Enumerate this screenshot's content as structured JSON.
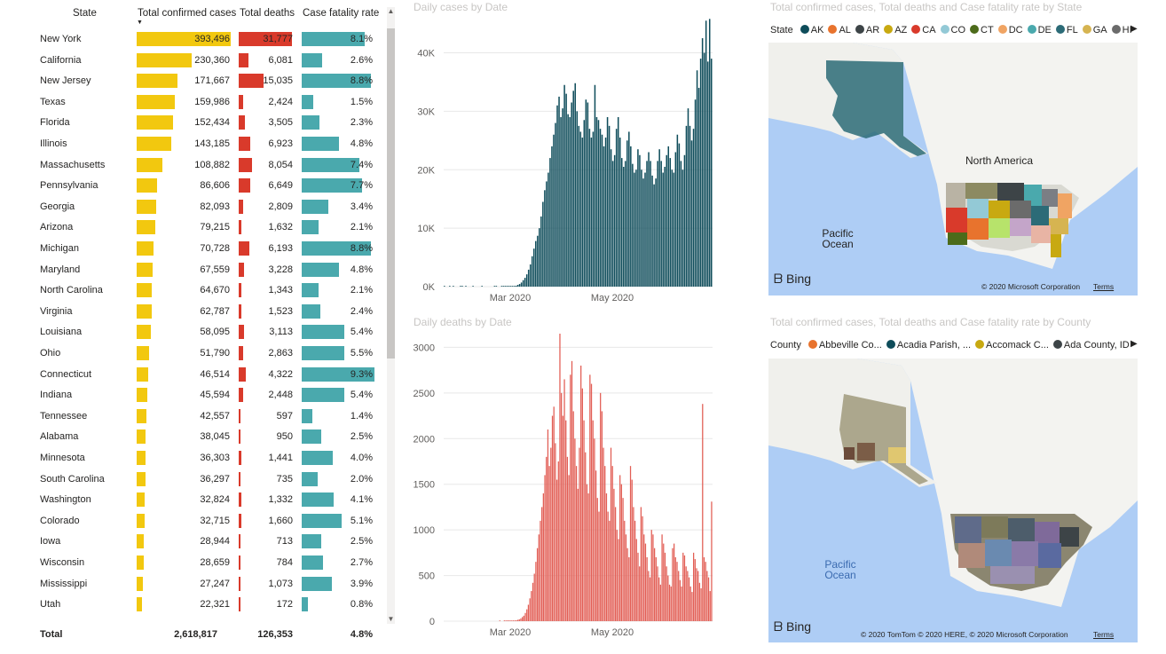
{
  "table": {
    "headers": {
      "state": "State",
      "cases": "Total confirmed cases",
      "deaths": "Total deaths",
      "cfr": "Case fatality rate"
    },
    "rows": [
      {
        "state": "New York",
        "cases": "393,496",
        "deaths": "31,777",
        "cfr": "8.1%",
        "cases_v": 393496,
        "deaths_v": 31777,
        "cfr_v": 8.1
      },
      {
        "state": "California",
        "cases": "230,360",
        "deaths": "6,081",
        "cfr": "2.6%",
        "cases_v": 230360,
        "deaths_v": 6081,
        "cfr_v": 2.6
      },
      {
        "state": "New Jersey",
        "cases": "171,667",
        "deaths": "15,035",
        "cfr": "8.8%",
        "cases_v": 171667,
        "deaths_v": 15035,
        "cfr_v": 8.8
      },
      {
        "state": "Texas",
        "cases": "159,986",
        "deaths": "2,424",
        "cfr": "1.5%",
        "cases_v": 159986,
        "deaths_v": 2424,
        "cfr_v": 1.5
      },
      {
        "state": "Florida",
        "cases": "152,434",
        "deaths": "3,505",
        "cfr": "2.3%",
        "cases_v": 152434,
        "deaths_v": 3505,
        "cfr_v": 2.3
      },
      {
        "state": "Illinois",
        "cases": "143,185",
        "deaths": "6,923",
        "cfr": "4.8%",
        "cases_v": 143185,
        "deaths_v": 6923,
        "cfr_v": 4.8
      },
      {
        "state": "Massachusetts",
        "cases": "108,882",
        "deaths": "8,054",
        "cfr": "7.4%",
        "cases_v": 108882,
        "deaths_v": 8054,
        "cfr_v": 7.4
      },
      {
        "state": "Pennsylvania",
        "cases": "86,606",
        "deaths": "6,649",
        "cfr": "7.7%",
        "cases_v": 86606,
        "deaths_v": 6649,
        "cfr_v": 7.7
      },
      {
        "state": "Georgia",
        "cases": "82,093",
        "deaths": "2,809",
        "cfr": "3.4%",
        "cases_v": 82093,
        "deaths_v": 2809,
        "cfr_v": 3.4
      },
      {
        "state": "Arizona",
        "cases": "79,215",
        "deaths": "1,632",
        "cfr": "2.1%",
        "cases_v": 79215,
        "deaths_v": 1632,
        "cfr_v": 2.1
      },
      {
        "state": "Michigan",
        "cases": "70,728",
        "deaths": "6,193",
        "cfr": "8.8%",
        "cases_v": 70728,
        "deaths_v": 6193,
        "cfr_v": 8.8
      },
      {
        "state": "Maryland",
        "cases": "67,559",
        "deaths": "3,228",
        "cfr": "4.8%",
        "cases_v": 67559,
        "deaths_v": 3228,
        "cfr_v": 4.8
      },
      {
        "state": "North Carolina",
        "cases": "64,670",
        "deaths": "1,343",
        "cfr": "2.1%",
        "cases_v": 64670,
        "deaths_v": 1343,
        "cfr_v": 2.1
      },
      {
        "state": "Virginia",
        "cases": "62,787",
        "deaths": "1,523",
        "cfr": "2.4%",
        "cases_v": 62787,
        "deaths_v": 1523,
        "cfr_v": 2.4
      },
      {
        "state": "Louisiana",
        "cases": "58,095",
        "deaths": "3,113",
        "cfr": "5.4%",
        "cases_v": 58095,
        "deaths_v": 3113,
        "cfr_v": 5.4
      },
      {
        "state": "Ohio",
        "cases": "51,790",
        "deaths": "2,863",
        "cfr": "5.5%",
        "cases_v": 51790,
        "deaths_v": 2863,
        "cfr_v": 5.5
      },
      {
        "state": "Connecticut",
        "cases": "46,514",
        "deaths": "4,322",
        "cfr": "9.3%",
        "cases_v": 46514,
        "deaths_v": 4322,
        "cfr_v": 9.3
      },
      {
        "state": "Indiana",
        "cases": "45,594",
        "deaths": "2,448",
        "cfr": "5.4%",
        "cases_v": 45594,
        "deaths_v": 2448,
        "cfr_v": 5.4
      },
      {
        "state": "Tennessee",
        "cases": "42,557",
        "deaths": "597",
        "cfr": "1.4%",
        "cases_v": 42557,
        "deaths_v": 597,
        "cfr_v": 1.4
      },
      {
        "state": "Alabama",
        "cases": "38,045",
        "deaths": "950",
        "cfr": "2.5%",
        "cases_v": 38045,
        "deaths_v": 950,
        "cfr_v": 2.5
      },
      {
        "state": "Minnesota",
        "cases": "36,303",
        "deaths": "1,441",
        "cfr": "4.0%",
        "cases_v": 36303,
        "deaths_v": 1441,
        "cfr_v": 4.0
      },
      {
        "state": "South Carolina",
        "cases": "36,297",
        "deaths": "735",
        "cfr": "2.0%",
        "cases_v": 36297,
        "deaths_v": 735,
        "cfr_v": 2.0
      },
      {
        "state": "Washington",
        "cases": "32,824",
        "deaths": "1,332",
        "cfr": "4.1%",
        "cases_v": 32824,
        "deaths_v": 1332,
        "cfr_v": 4.1
      },
      {
        "state": "Colorado",
        "cases": "32,715",
        "deaths": "1,660",
        "cfr": "5.1%",
        "cases_v": 32715,
        "deaths_v": 1660,
        "cfr_v": 5.1
      },
      {
        "state": "Iowa",
        "cases": "28,944",
        "deaths": "713",
        "cfr": "2.5%",
        "cases_v": 28944,
        "deaths_v": 713,
        "cfr_v": 2.5
      },
      {
        "state": "Wisconsin",
        "cases": "28,659",
        "deaths": "784",
        "cfr": "2.7%",
        "cases_v": 28659,
        "deaths_v": 784,
        "cfr_v": 2.7
      },
      {
        "state": "Mississippi",
        "cases": "27,247",
        "deaths": "1,073",
        "cfr": "3.9%",
        "cases_v": 27247,
        "deaths_v": 1073,
        "cfr_v": 3.9
      },
      {
        "state": "Utah",
        "cases": "22,321",
        "deaths": "172",
        "cfr": "0.8%",
        "cases_v": 22321,
        "deaths_v": 172,
        "cfr_v": 0.8
      }
    ],
    "total": {
      "label": "Total",
      "cases": "2,618,817",
      "deaths": "126,353",
      "cfr": "4.8%"
    },
    "colors": {
      "cases": "#f2c80f",
      "deaths": "#d93a2b",
      "cfr": "#4aa9ad"
    }
  },
  "cases_chart": {
    "title": "Daily cases by Date",
    "yticks": [
      "0K",
      "10K",
      "20K",
      "30K",
      "40K"
    ],
    "xticks": [
      "Mar 2020",
      "May 2020"
    ],
    "color": "#0e4c5a"
  },
  "deaths_chart": {
    "title": "Daily deaths by Date",
    "yticks": [
      "0",
      "500",
      "1000",
      "1500",
      "2000",
      "2500",
      "3000"
    ],
    "xticks": [
      "Mar 2020",
      "May 2020"
    ],
    "color": "#e25e55"
  },
  "chart_data": [
    {
      "type": "bar",
      "title": "Daily cases by Date",
      "ylim": [
        0,
        46000
      ],
      "start": "2020-01-21",
      "values": [
        1,
        0,
        0,
        1,
        0,
        1,
        0,
        0,
        0,
        1,
        1,
        0,
        1,
        0,
        0,
        0,
        1,
        0,
        0,
        0,
        0,
        1,
        0,
        0,
        0,
        0,
        0,
        0,
        1,
        1,
        0,
        0,
        1,
        2,
        3,
        5,
        12,
        25,
        40,
        90,
        150,
        300,
        450,
        700,
        1100,
        1500,
        2100,
        2900,
        3800,
        5200,
        6500,
        7800,
        8700,
        10000,
        12000,
        14500,
        16500,
        18000,
        19500,
        22000,
        24000,
        26000,
        28000,
        31000,
        32500,
        29000,
        30500,
        34500,
        33000,
        29500,
        29000,
        31500,
        33500,
        34800,
        30000,
        27500,
        26500,
        25500,
        28500,
        32000,
        31500,
        27000,
        25500,
        26500,
        34500,
        29000,
        28500,
        27000,
        26000,
        24000,
        25500,
        29000,
        27500,
        23500,
        21500,
        22500,
        27000,
        29000,
        25500,
        22000,
        20500,
        21500,
        25000,
        26500,
        24000,
        21000,
        19500,
        20000,
        23500,
        22500,
        20000,
        18500,
        19500,
        21500,
        23000,
        21500,
        19000,
        17500,
        18500,
        21500,
        23500,
        21500,
        19500,
        20500,
        22500,
        24000,
        22000,
        20000,
        19500,
        23000,
        26000,
        24500,
        21500,
        20000,
        22500,
        27500,
        30500,
        27500,
        25000,
        27000,
        32000,
        37000,
        34000,
        39000,
        42500,
        40000,
        45500,
        38500,
        45800,
        39000
      ]
    },
    {
      "type": "bar",
      "title": "Daily deaths by Date",
      "ylim": [
        0,
        3150
      ],
      "start": "2020-01-21",
      "values": [
        0,
        0,
        0,
        0,
        0,
        0,
        0,
        0,
        0,
        0,
        0,
        0,
        0,
        0,
        0,
        0,
        0,
        0,
        0,
        0,
        0,
        0,
        0,
        0,
        0,
        0,
        0,
        0,
        0,
        0,
        0,
        0,
        0,
        0,
        0,
        0,
        0,
        1,
        0,
        0,
        1,
        1,
        2,
        3,
        4,
        5,
        6,
        8,
        10,
        15,
        20,
        30,
        45,
        60,
        90,
        130,
        180,
        250,
        330,
        420,
        520,
        650,
        800,
        950,
        1100,
        1250,
        1400,
        1600,
        1800,
        2100,
        1700,
        1900,
        2250,
        2350,
        1950,
        1550,
        1750,
        3150,
        2500,
        2250,
        2650,
        2200,
        1800,
        1600,
        2700,
        2850,
        2300,
        2000,
        1700,
        1450,
        1900,
        2800,
        2550,
        2200,
        1850,
        1500,
        1400,
        2700,
        2600,
        2200,
        2000,
        1650,
        1350,
        1200,
        2500,
        2300,
        1900,
        1700,
        1400,
        1200,
        1100,
        1900,
        1700,
        1450,
        1250,
        1000,
        900,
        1600,
        1500,
        1350,
        1100,
        950,
        800,
        700,
        1700,
        1550,
        1250,
        1100,
        900,
        750,
        600,
        1250,
        1150,
        950,
        850,
        700,
        550,
        480,
        1000,
        950,
        800,
        700,
        600,
        480,
        400,
        950,
        850,
        750,
        600,
        500,
        400,
        380,
        800,
        850,
        700,
        650,
        550,
        450,
        380,
        750,
        720,
        600,
        550,
        480,
        380,
        320,
        750,
        680,
        580,
        550,
        420,
        360,
        2380,
        700,
        650,
        550,
        480,
        330,
        1310
      ]
    }
  ],
  "state_map": {
    "title": "Total confirmed cases, Total deaths and Case fatality rate by State",
    "legend_label": "State",
    "legend": [
      {
        "name": "AK",
        "color": "#0e4c5a"
      },
      {
        "name": "AL",
        "color": "#e8732d"
      },
      {
        "name": "AR",
        "color": "#3d4447"
      },
      {
        "name": "AZ",
        "color": "#c8a911"
      },
      {
        "name": "CA",
        "color": "#d93a2b"
      },
      {
        "name": "CO",
        "color": "#93c9d6"
      },
      {
        "name": "CT",
        "color": "#4c6b1a"
      },
      {
        "name": "DC",
        "color": "#f0a463"
      },
      {
        "name": "DE",
        "color": "#4aa9ad"
      },
      {
        "name": "FL",
        "color": "#2c6b77"
      },
      {
        "name": "GA",
        "color": "#d6b451"
      },
      {
        "name": "HI",
        "color": "#6b6b6b"
      }
    ],
    "labels": {
      "continent": "North America",
      "ocean": "Pacific\nOcean"
    },
    "bing": "Bing",
    "copyright": "© 2020 Microsoft Corporation",
    "terms": "Terms"
  },
  "county_map": {
    "title": "Total confirmed cases, Total deaths and Case fatality rate by County",
    "legend_label": "County",
    "legend": [
      {
        "name": "Abbeville Co...",
        "color": "#e8732d"
      },
      {
        "name": "Acadia Parish, ...",
        "color": "#0e4c5a"
      },
      {
        "name": "Accomack C...",
        "color": "#c8a911"
      },
      {
        "name": "Ada County, ID",
        "color": "#3d4447"
      }
    ],
    "labels": {
      "ocean": "Pacific\nOcean"
    },
    "bing": "Bing",
    "copyright": "© 2020 TomTom © 2020 HERE, © 2020 Microsoft Corporation",
    "terms": "Terms"
  }
}
